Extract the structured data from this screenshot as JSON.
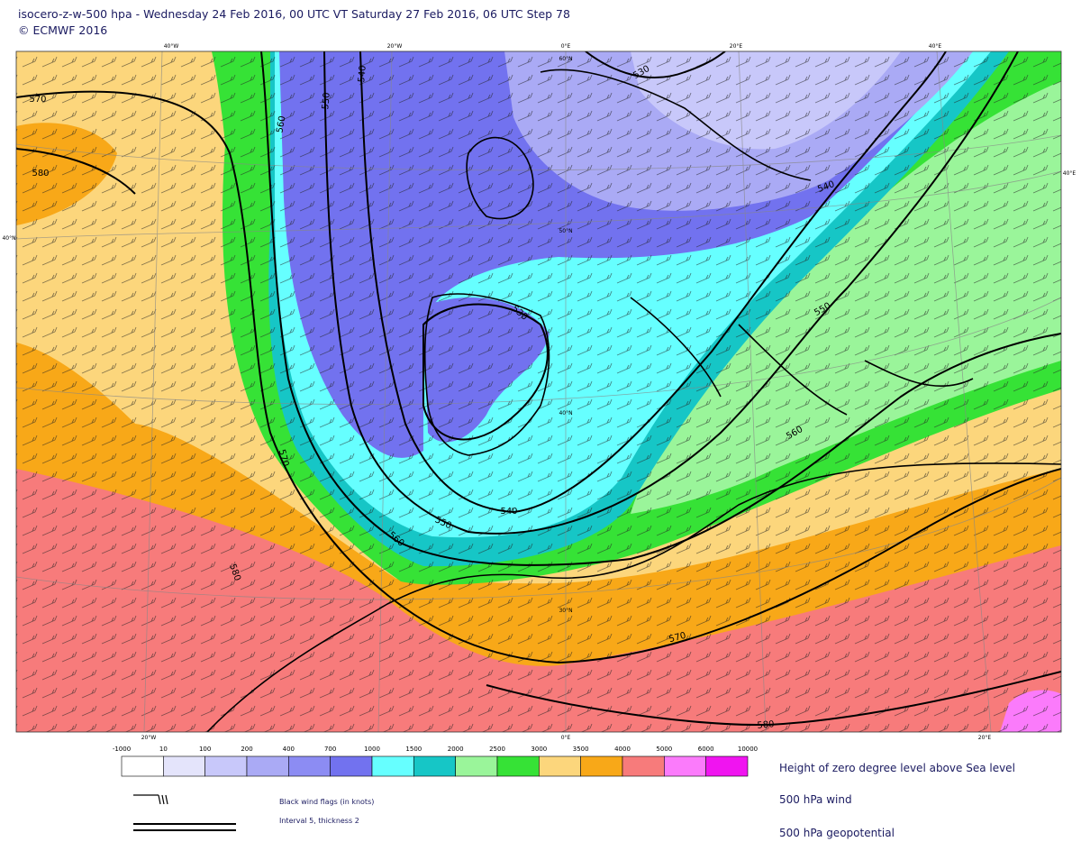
{
  "header": {
    "title": "isocero-z-w-500 hpa - Wednesday 24 Feb 2016, 00 UTC VT Saturday 27 Feb 2016, 06 UTC Step 78",
    "copyright": "© ECMWF 2016"
  },
  "map": {
    "graticule_labels": [
      "40°W",
      "20°W",
      "0°E",
      "20°E",
      "40°E",
      "60°N",
      "50°N",
      "40°N",
      "30°N",
      "40°N",
      "40°E",
      "20°W",
      "0°E",
      "20°E"
    ],
    "contour_labels": [
      "570",
      "580",
      "560",
      "550",
      "540",
      "530",
      "540",
      "550",
      "530",
      "560",
      "570",
      "580",
      "560",
      "550",
      "540",
      "570",
      "580"
    ]
  },
  "legend": {
    "breaks": [
      -1000,
      10,
      100,
      200,
      400,
      700,
      1000,
      1500,
      2000,
      2500,
      3000,
      3500,
      4000,
      5000,
      6000,
      10000
    ],
    "colors": [
      "#ffffff",
      "#e4e4fb",
      "#c8c8fa",
      "#aaaaf5",
      "#8c8cf3",
      "#7272ef",
      "#66ffff",
      "#16c6c6",
      "#9af59a",
      "#36e236",
      "#fcd67c",
      "#f8a818",
      "#f77b7b",
      "#fb7bfb",
      "#f014f0"
    ],
    "titles": [
      "Height of zero degree level above Sea level",
      "500 hPa wind",
      "500 hPa geopotential"
    ],
    "notes": [
      "Black wind flags (in knots)",
      "Interval 5, thickness 2"
    ]
  }
}
